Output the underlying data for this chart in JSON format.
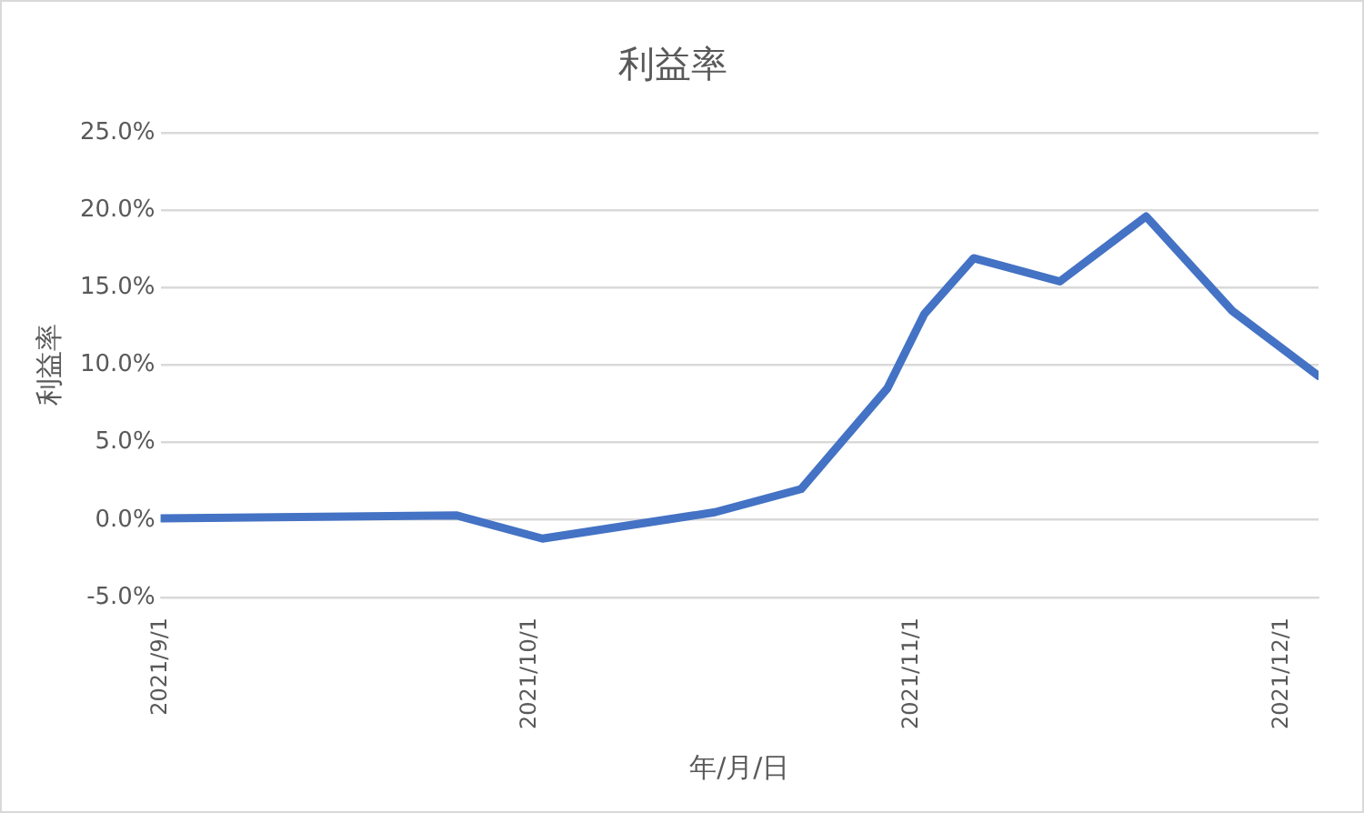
{
  "chart_data": {
    "type": "line",
    "title": "利益率",
    "xlabel": "年/月/日",
    "ylabel": "利益率",
    "x": [
      "2021-09-01",
      "2021-09-25",
      "2021-10-02",
      "2021-10-16",
      "2021-10-23",
      "2021-10-30",
      "2021-11-02",
      "2021-11-06",
      "2021-11-13",
      "2021-11-20",
      "2021-11-27",
      "2021-12-04"
    ],
    "series": [
      {
        "color": "#4472c4",
        "values": [
          0.1,
          0.3,
          -1.2,
          0.5,
          2.0,
          8.5,
          13.3,
          16.9,
          15.4,
          19.6,
          13.5,
          9.3
        ]
      }
    ],
    "xlim": [
      "2021-09-01",
      "2021-12-04"
    ],
    "xticks": [
      {
        "value": "2021-09-01",
        "label": "2021/9/1"
      },
      {
        "value": "2021-10-01",
        "label": "2021/10/1"
      },
      {
        "value": "2021-11-01",
        "label": "2021/11/1"
      },
      {
        "value": "2021-12-01",
        "label": "2021/12/1"
      }
    ],
    "ylim": [
      -5,
      25
    ],
    "yticks": [
      {
        "value": -5,
        "label": "-5.0%"
      },
      {
        "value": 0,
        "label": "0.0%"
      },
      {
        "value": 5,
        "label": "5.0%"
      },
      {
        "value": 10,
        "label": "10.0%"
      },
      {
        "value": 15,
        "label": "15.0%"
      },
      {
        "value": 20,
        "label": "20.0%"
      },
      {
        "value": 25,
        "label": "25.0%"
      }
    ],
    "grid": "y",
    "legend": false,
    "marker": "none",
    "line_style": "solid"
  }
}
